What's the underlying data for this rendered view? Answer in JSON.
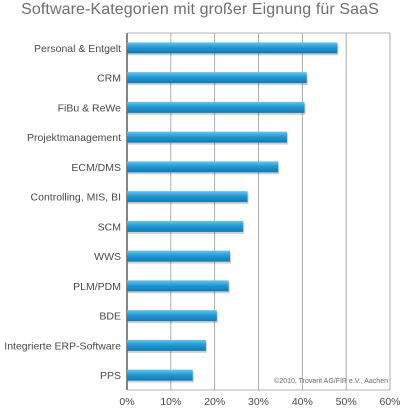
{
  "title": "Software-Kategorien mit großer Eignung für SaaS",
  "credit": "©2010, Trovarit AG/FIR e.V., Aachen",
  "colors": {
    "bar": "#1f9ad6",
    "bar_dark": "#1478b0",
    "bar_light": "#6cc3ec",
    "grid": "#9a9a9a",
    "axis": "#333333"
  },
  "chart_data": {
    "type": "bar",
    "orientation": "horizontal",
    "title": "Software-Kategorien mit großer Eignung für SaaS",
    "categories": [
      "Personal & Entgelt",
      "CRM",
      "FiBu & ReWe",
      "Projektmanagement",
      "ECM/DMS",
      "Controlling, MIS, BI",
      "SCM",
      "WWS",
      "PLM/PDM",
      "BDE",
      "Integrierte ERP-Software",
      "PPS"
    ],
    "values": [
      48,
      41,
      40.5,
      36.5,
      34.5,
      27.5,
      26.5,
      23.5,
      23.2,
      20.5,
      18,
      15
    ],
    "xlim": [
      0,
      60
    ],
    "x_ticks": [
      "0%",
      "10%",
      "20%",
      "30%",
      "40%",
      "50%",
      "60%"
    ],
    "grid": true
  }
}
